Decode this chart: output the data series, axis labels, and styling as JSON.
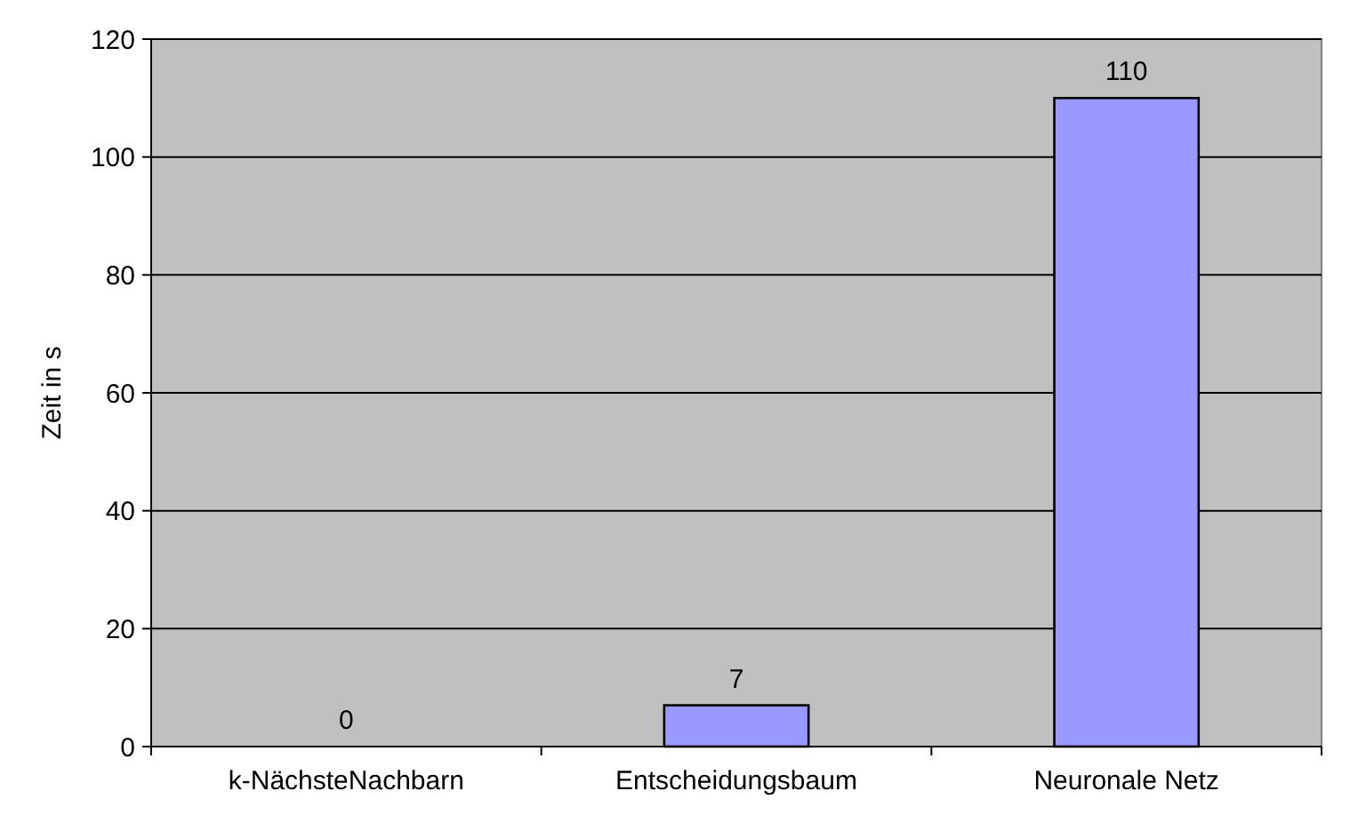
{
  "chart_data": {
    "type": "bar",
    "ylabel": "Zeit in s",
    "categories": [
      "k-NächsteNachbarn",
      "Entscheidungsbaum",
      "Neuronale Netz"
    ],
    "values": [
      0,
      7,
      110
    ],
    "color": "#9999ff",
    "ylim": [
      0,
      120
    ],
    "yticks": [
      0,
      20,
      40,
      60,
      80,
      100,
      120
    ],
    "grid": "y",
    "data_labels": true
  }
}
